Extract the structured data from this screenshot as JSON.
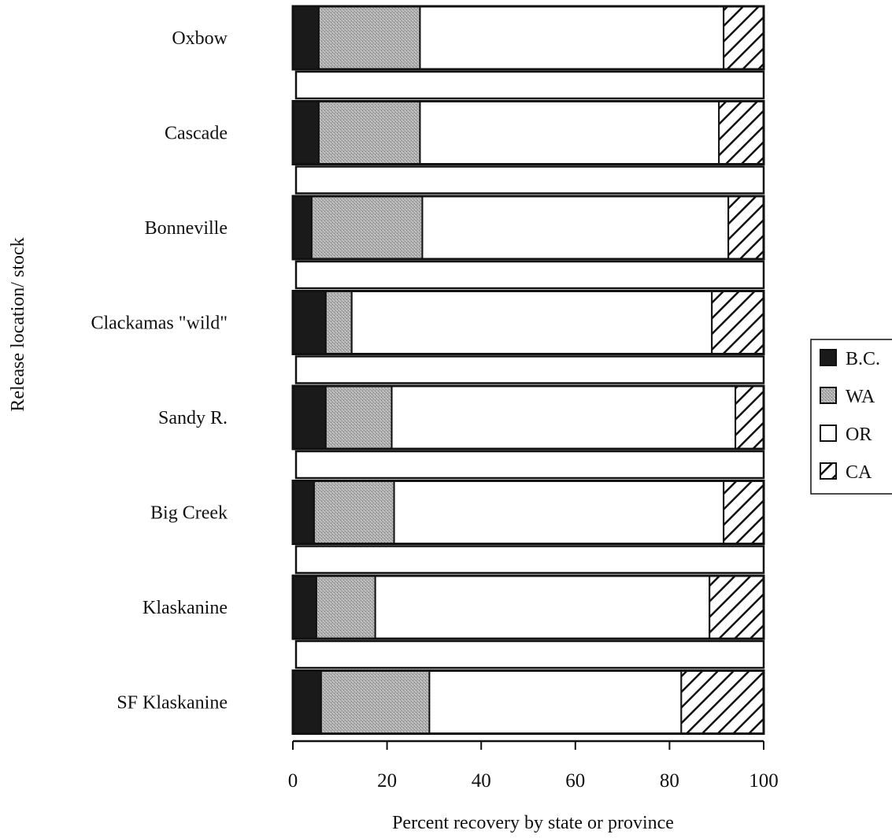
{
  "chart_data": {
    "type": "bar",
    "orientation": "horizontal",
    "stacked": true,
    "title": "",
    "xlabel": "Percent recovery by state or province",
    "ylabel": "Release location/ stock",
    "xlim": [
      0,
      100
    ],
    "xticks": [
      "0",
      "20",
      "40",
      "60",
      "80",
      "100"
    ],
    "categories": [
      "Oxbow",
      "Cascade",
      "Bonneville",
      "Clackamas \"wild\"",
      "Sandy R.",
      "Big Creek",
      "Klaskanine",
      "SF Klaskanine"
    ],
    "series": [
      {
        "name": "B.C.",
        "values": [
          5.5,
          5.5,
          4,
          7,
          7,
          4.5,
          5,
          6
        ],
        "color": "#1a1a1a",
        "pattern": "solid"
      },
      {
        "name": "WA",
        "values": [
          21.5,
          21.5,
          23.5,
          5.5,
          14,
          17,
          12.5,
          23
        ],
        "color": "#a8a8a8",
        "pattern": "stipple"
      },
      {
        "name": "OR",
        "values": [
          64.5,
          63.5,
          65,
          76.5,
          73,
          70,
          71,
          53.5
        ],
        "color": "#ffffff",
        "pattern": "none"
      },
      {
        "name": "CA",
        "values": [
          8.5,
          9.5,
          7.5,
          11,
          6,
          8.5,
          11.5,
          17.5
        ],
        "color": "#ffffff",
        "pattern": "diagonal-hatch"
      }
    ],
    "legend_position": "right",
    "grid": false
  }
}
